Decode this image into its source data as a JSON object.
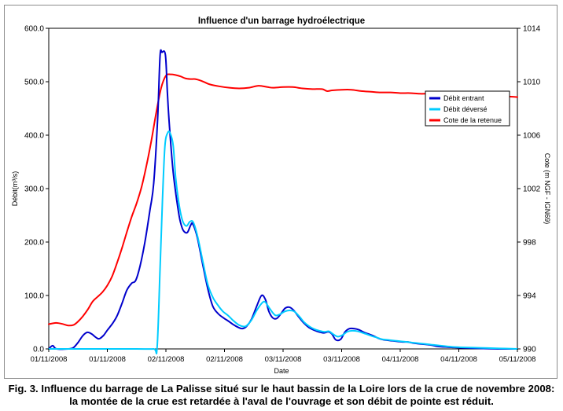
{
  "chart_data": {
    "type": "line",
    "title": "Influence d'un barrage hydroélectrique",
    "xlabel": "Date",
    "ylabel_left": "Débit(m³/s)",
    "ylabel_right": "Cote (m NGF - IGN69)",
    "x_tick_labels": [
      "01/11/2008",
      "01/11/2008",
      "02/11/2008",
      "02/11/2008",
      "03/11/2008",
      "03/11/2008",
      "04/11/2008",
      "04/11/2008",
      "05/11/2008"
    ],
    "x_unit": "hours since 01/11/2008 00:00",
    "xlim": [
      0,
      96
    ],
    "ylim_left": [
      0,
      600
    ],
    "y_ticks_left": [
      "0.0",
      "100.0",
      "200.0",
      "300.0",
      "400.0",
      "500.0",
      "600.0"
    ],
    "ylim_right": [
      990,
      1014
    ],
    "y_ticks_right": [
      "990",
      "994",
      "998",
      "1002",
      "1006",
      "1010",
      "1014"
    ],
    "grid": false,
    "legend_position": "top-right",
    "series": [
      {
        "name": "Débit entrant",
        "color": "#0000cc",
        "axis": "left",
        "points": [
          [
            0,
            0
          ],
          [
            0.8,
            6
          ],
          [
            1.6,
            0
          ],
          [
            4,
            0
          ],
          [
            5,
            2
          ],
          [
            6,
            12
          ],
          [
            7,
            25
          ],
          [
            7.9,
            31
          ],
          [
            8.8,
            28
          ],
          [
            9.6,
            22
          ],
          [
            10.3,
            19
          ],
          [
            11.2,
            25
          ],
          [
            12,
            35
          ],
          [
            13.1,
            48
          ],
          [
            14,
            62
          ],
          [
            15,
            85
          ],
          [
            16,
            110
          ],
          [
            17,
            123
          ],
          [
            17.8,
            128
          ],
          [
            18.7,
            155
          ],
          [
            19.7,
            200
          ],
          [
            20.7,
            258
          ],
          [
            21.5,
            310
          ],
          [
            22.3,
            430
          ],
          [
            22.8,
            548
          ],
          [
            23.2,
            555
          ],
          [
            23.9,
            550
          ],
          [
            24.3,
            480
          ],
          [
            24.7,
            420
          ],
          [
            25.5,
            330
          ],
          [
            26.6,
            255
          ],
          [
            27.2,
            230
          ],
          [
            27.7,
            220
          ],
          [
            28.4,
            218
          ],
          [
            29.1,
            232
          ],
          [
            29.5,
            234
          ],
          [
            30.4,
            210
          ],
          [
            31.5,
            160
          ],
          [
            32.6,
            112
          ],
          [
            33.6,
            80
          ],
          [
            34.7,
            66
          ],
          [
            35.8,
            58
          ],
          [
            36.8,
            52
          ],
          [
            37.9,
            45
          ],
          [
            38.9,
            40
          ],
          [
            39.7,
            38
          ],
          [
            40.5,
            42
          ],
          [
            41.5,
            55
          ],
          [
            42.6,
            80
          ],
          [
            43.6,
            100
          ],
          [
            44.4,
            92
          ],
          [
            45.1,
            70
          ],
          [
            45.9,
            58
          ],
          [
            46.7,
            57
          ],
          [
            47.5,
            65
          ],
          [
            48.4,
            76
          ],
          [
            49.3,
            78
          ],
          [
            50.2,
            72
          ],
          [
            51.2,
            60
          ],
          [
            52.3,
            48
          ],
          [
            53.3,
            40
          ],
          [
            54.4,
            35
          ],
          [
            55.3,
            32
          ],
          [
            56.4,
            30
          ],
          [
            57.3,
            32
          ],
          [
            58,
            28
          ],
          [
            58.8,
            17
          ],
          [
            59.8,
            18
          ],
          [
            60.7,
            32
          ],
          [
            61.6,
            38
          ],
          [
            62.5,
            38
          ],
          [
            63.5,
            36
          ],
          [
            64.6,
            31
          ],
          [
            65.5,
            28
          ],
          [
            66.6,
            24
          ],
          [
            67.5,
            20
          ],
          [
            68.6,
            17
          ],
          [
            69.6,
            16
          ],
          [
            70.5,
            15
          ],
          [
            71.5,
            14
          ],
          [
            72.6,
            13
          ],
          [
            73.5,
            13
          ],
          [
            74.6,
            11
          ],
          [
            75.5,
            10
          ],
          [
            76.5,
            9
          ],
          [
            77.6,
            8
          ],
          [
            78.5,
            7
          ],
          [
            79.5,
            5
          ],
          [
            80.5,
            4
          ],
          [
            82.5,
            3
          ],
          [
            84.5,
            2
          ],
          [
            88.5,
            1
          ],
          [
            92.5,
            0
          ],
          [
            96,
            0
          ]
        ]
      },
      {
        "name": "Débit déversé",
        "color": "#00ccff",
        "axis": "left",
        "points": [
          [
            0,
            0
          ],
          [
            6,
            0
          ],
          [
            12,
            0
          ],
          [
            18,
            0
          ],
          [
            21.5,
            0
          ],
          [
            22.2,
            3
          ],
          [
            22.8,
            150
          ],
          [
            23.3,
            280
          ],
          [
            23.8,
            380
          ],
          [
            24.4,
            405
          ],
          [
            24.9,
            403
          ],
          [
            25.5,
            380
          ],
          [
            26,
            320
          ],
          [
            26.7,
            270
          ],
          [
            27.4,
            240
          ],
          [
            28.2,
            230
          ],
          [
            28.9,
            238
          ],
          [
            29.6,
            237
          ],
          [
            30.5,
            210
          ],
          [
            31.6,
            162
          ],
          [
            32.6,
            120
          ],
          [
            33.7,
            95
          ],
          [
            34.8,
            80
          ],
          [
            35.7,
            70
          ],
          [
            36.8,
            62
          ],
          [
            37.8,
            53
          ],
          [
            38.9,
            45
          ],
          [
            39.9,
            42
          ],
          [
            40.6,
            44
          ],
          [
            41.6,
            55
          ],
          [
            42.6,
            72
          ],
          [
            43.6,
            85
          ],
          [
            44.3,
            88
          ],
          [
            45.3,
            75
          ],
          [
            46.4,
            63
          ],
          [
            47.4,
            65
          ],
          [
            48.3,
            70
          ],
          [
            49.3,
            72
          ],
          [
            50.3,
            70
          ],
          [
            51.4,
            60
          ],
          [
            52.3,
            50
          ],
          [
            53.4,
            42
          ],
          [
            54.4,
            37
          ],
          [
            55.4,
            34
          ],
          [
            56.5,
            32
          ],
          [
            57.4,
            33
          ],
          [
            58.2,
            28
          ],
          [
            59.2,
            23
          ],
          [
            60.2,
            26
          ],
          [
            61.1,
            32
          ],
          [
            62.1,
            34
          ],
          [
            63.3,
            33
          ],
          [
            64.3,
            30
          ],
          [
            65.3,
            27
          ],
          [
            66.2,
            24
          ],
          [
            67.3,
            21
          ],
          [
            68.3,
            18
          ],
          [
            69.4,
            17
          ],
          [
            70.3,
            16
          ],
          [
            71.3,
            15
          ],
          [
            72.3,
            14
          ],
          [
            73.4,
            13
          ],
          [
            74.3,
            12
          ],
          [
            75.3,
            11
          ],
          [
            76.4,
            10
          ],
          [
            77.4,
            9
          ],
          [
            78.3,
            8
          ],
          [
            79.4,
            7
          ],
          [
            80.3,
            6
          ],
          [
            82.4,
            4
          ],
          [
            84.4,
            3
          ],
          [
            88.3,
            2
          ],
          [
            92.3,
            1
          ],
          [
            96,
            0
          ]
        ]
      },
      {
        "name": "Cote de la retenue",
        "color": "#ff0000",
        "axis": "right",
        "points": [
          [
            0,
            991.85
          ],
          [
            1.5,
            991.95
          ],
          [
            3,
            991.85
          ],
          [
            4,
            991.75
          ],
          [
            5.1,
            991.8
          ],
          [
            6,
            992.05
          ],
          [
            7,
            992.45
          ],
          [
            8,
            992.95
          ],
          [
            9,
            993.55
          ],
          [
            10,
            993.9
          ],
          [
            11,
            994.25
          ],
          [
            12,
            994.75
          ],
          [
            13,
            995.45
          ],
          [
            14,
            996.45
          ],
          [
            15,
            997.55
          ],
          [
            16,
            998.75
          ],
          [
            17,
            999.9
          ],
          [
            18,
            1000.9
          ],
          [
            19,
            1002.1
          ],
          [
            20,
            1003.7
          ],
          [
            21,
            1005.55
          ],
          [
            22,
            1007.65
          ],
          [
            23,
            1009.5
          ],
          [
            24,
            1010.45
          ],
          [
            25,
            1010.55
          ],
          [
            26,
            1010.5
          ],
          [
            27,
            1010.4
          ],
          [
            28,
            1010.25
          ],
          [
            29,
            1010.2
          ],
          [
            30,
            1010.2
          ],
          [
            31,
            1010.1
          ],
          [
            32,
            1009.95
          ],
          [
            33,
            1009.8
          ],
          [
            35,
            1009.65
          ],
          [
            37,
            1009.55
          ],
          [
            39,
            1009.5
          ],
          [
            41,
            1009.55
          ],
          [
            43,
            1009.7
          ],
          [
            44.8,
            1009.6
          ],
          [
            46,
            1009.55
          ],
          [
            48,
            1009.6
          ],
          [
            50,
            1009.6
          ],
          [
            52,
            1009.5
          ],
          [
            54,
            1009.45
          ],
          [
            56,
            1009.45
          ],
          [
            57,
            1009.3
          ],
          [
            58,
            1009.35
          ],
          [
            60,
            1009.4
          ],
          [
            62,
            1009.4
          ],
          [
            64,
            1009.3
          ],
          [
            66,
            1009.25
          ],
          [
            68,
            1009.2
          ],
          [
            70,
            1009.2
          ],
          [
            72,
            1009.15
          ],
          [
            74,
            1009.15
          ],
          [
            76,
            1009.1
          ],
          [
            78,
            1009.1
          ],
          [
            80,
            1009.05
          ],
          [
            82,
            1009.05
          ],
          [
            84,
            1009.0
          ],
          [
            86,
            1009.0
          ],
          [
            88,
            1008.95
          ],
          [
            90,
            1008.95
          ],
          [
            92,
            1008.9
          ],
          [
            94,
            1008.9
          ],
          [
            96,
            1008.85
          ]
        ]
      }
    ]
  },
  "caption": {
    "line1": "Fig. 3. Influence du barrage de La Palisse situé sur le haut bassin de la Loire lors de la crue de novembre 2008:",
    "line2": "la montée de la crue est retardée à l'aval de l'ouvrage et son débit de pointe est réduit."
  }
}
